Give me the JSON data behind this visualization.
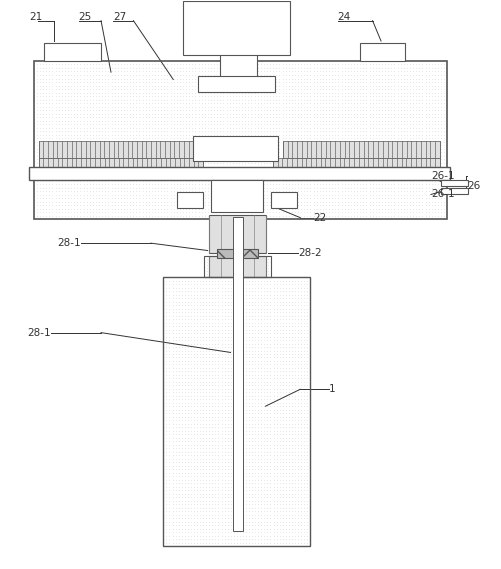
{
  "bg_color": "#ffffff",
  "line_color": "#555555",
  "fig_width": 5.01,
  "fig_height": 5.69,
  "fs": 7.5,
  "label_color": "#333333",
  "dot_color": "#aaaaaa",
  "hatch_color": "#888888"
}
